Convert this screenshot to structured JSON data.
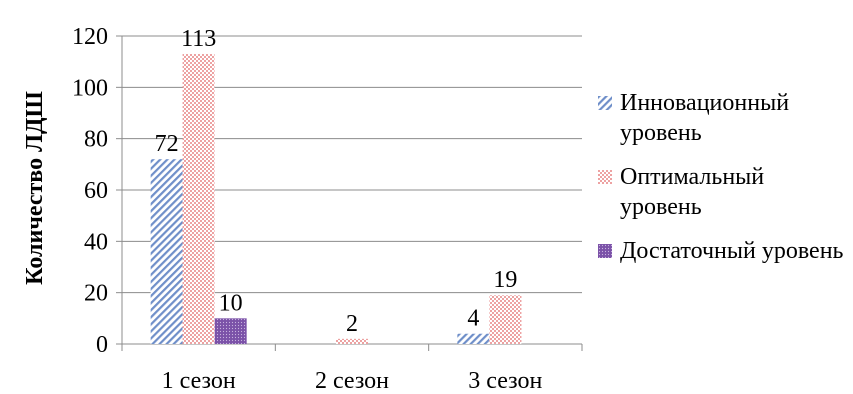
{
  "chart_data": {
    "type": "bar",
    "title": "",
    "xlabel": "",
    "ylabel": "Количество ЛДШ",
    "ylim": [
      0,
      120
    ],
    "yticks": [
      "0",
      "20",
      "40",
      "60",
      "80",
      "100",
      "120"
    ],
    "categories": [
      "1 сезон",
      "2 сезон",
      "3 сезон"
    ],
    "series": [
      {
        "name": "Инновационный уровень",
        "values": [
          72,
          0,
          4
        ],
        "labels": [
          "72",
          "",
          "4"
        ],
        "color": "#6f8fc9",
        "pattern": "diagonal-stripes"
      },
      {
        "name": "Оптимальный уровень",
        "values": [
          113,
          2,
          19
        ],
        "labels": [
          "113",
          "2",
          "19"
        ],
        "color": "#e06060",
        "pattern": "dots"
      },
      {
        "name": "Достаточный уровень",
        "values": [
          10,
          0,
          0
        ],
        "labels": [
          "10",
          "",
          ""
        ],
        "color": "#7b52a8",
        "pattern": "dense-dots"
      }
    ],
    "grid": true,
    "legend_position": "right"
  }
}
